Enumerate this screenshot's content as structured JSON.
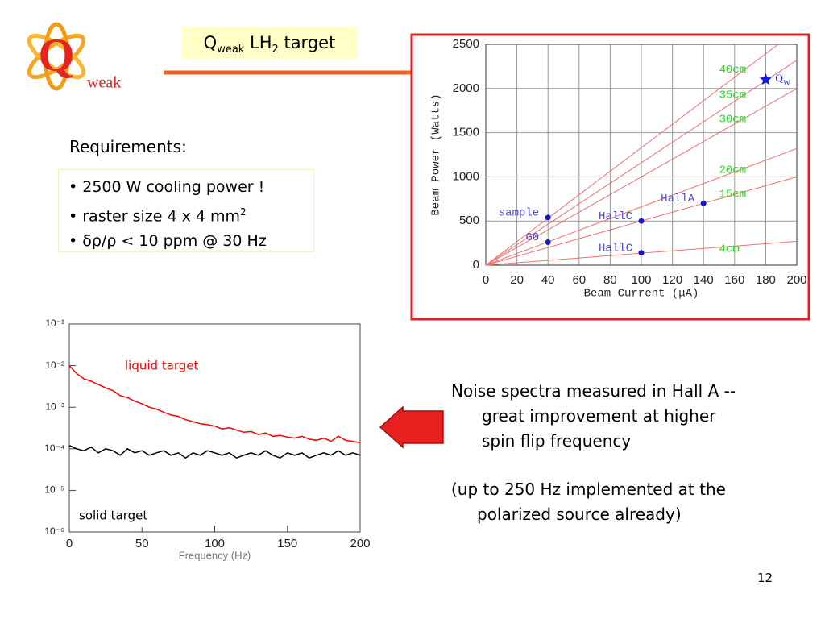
{
  "logo": {
    "letter": "Q",
    "text": "weak"
  },
  "title": {
    "q": "Q",
    "weak": "weak",
    "lh": " LH",
    "two": "2",
    "target": " target"
  },
  "requirements": {
    "heading": "Requirements:",
    "items": [
      "• 2500 W cooling power !",
      "• raster size 4 x 4 mm",
      "•  δρ/ρ < 10 ppm @ 30 Hz"
    ],
    "item_sup": "2"
  },
  "notes": {
    "p1": [
      "Noise spectra measured in Hall A --",
      "great improvement at higher",
      "spin flip frequency"
    ],
    "p2": [
      "(up to 250 Hz implemented at the",
      "polarized source already)"
    ]
  },
  "page_number": "12",
  "chart_data": [
    {
      "type": "line",
      "xlabel": "Beam Current (μA)",
      "ylabel": "Beam Power (Watts)",
      "xlim": [
        0,
        200
      ],
      "ylim": [
        0,
        2500
      ],
      "xticks": [
        0,
        20,
        40,
        60,
        80,
        100,
        120,
        140,
        160,
        180,
        200
      ],
      "yticks": [
        0,
        500,
        1000,
        1500,
        2000,
        2500
      ],
      "grid": true,
      "label_color": "#22dd22",
      "series": [
        {
          "name": "40cm",
          "color": "#f07070",
          "x": [
            0,
            188
          ],
          "values": [
            0,
            2500
          ]
        },
        {
          "name": "35cm",
          "color": "#f07070",
          "x": [
            0,
            200
          ],
          "values": [
            0,
            2320
          ]
        },
        {
          "name": "30cm",
          "color": "#f07070",
          "x": [
            0,
            200
          ],
          "values": [
            0,
            2000
          ]
        },
        {
          "name": "20cm",
          "color": "#f07070",
          "x": [
            0,
            200
          ],
          "values": [
            0,
            1320
          ]
        },
        {
          "name": "15cm",
          "color": "#f07070",
          "x": [
            0,
            200
          ],
          "values": [
            0,
            1000
          ]
        },
        {
          "name": "4cm",
          "color": "#f07070",
          "x": [
            0,
            200
          ],
          "values": [
            0,
            270
          ]
        }
      ],
      "points": {
        "color": "#1515cc",
        "label_color": "#4a4ae0",
        "labels": [
          "sample",
          "G0",
          "HallC",
          "HallA",
          "HallC"
        ],
        "x": [
          40,
          40,
          100,
          140,
          100
        ],
        "values": [
          540,
          260,
          500,
          700,
          140
        ]
      },
      "star": {
        "label": "Q",
        "sub": "W",
        "x": 180,
        "y": 2100,
        "color": "#1515ee"
      }
    },
    {
      "type": "line",
      "log_y": true,
      "xlabel": "Frequency (Hz)",
      "xlim": [
        0,
        200
      ],
      "ylim": [
        1e-06,
        0.1
      ],
      "xticks": [
        0,
        50,
        100,
        150,
        200
      ],
      "yticks": [
        {
          "value": 0.1,
          "label": "10⁻¹"
        },
        {
          "value": 0.01,
          "label": "10⁻²"
        },
        {
          "value": 0.001,
          "label": "10⁻³"
        },
        {
          "value": 0.0001,
          "label": "10⁻⁴"
        },
        {
          "value": 1e-05,
          "label": "10⁻⁵"
        },
        {
          "value": 1e-06,
          "label": "10⁻⁶"
        }
      ],
      "x": [
        0,
        5,
        10,
        15,
        20,
        25,
        30,
        35,
        40,
        45,
        50,
        55,
        60,
        65,
        70,
        75,
        80,
        85,
        90,
        95,
        100,
        105,
        110,
        115,
        120,
        125,
        130,
        135,
        140,
        145,
        150,
        155,
        160,
        165,
        170,
        175,
        180,
        185,
        190,
        195,
        200
      ],
      "series": [
        {
          "name": "liquid target",
          "color": "#ff0000",
          "values": [
            0.01,
            0.0065,
            0.0048,
            0.0042,
            0.0035,
            0.0029,
            0.0025,
            0.0019,
            0.0017,
            0.0014,
            0.0012,
            0.001,
            0.0009,
            0.00075,
            0.00065,
            0.0006,
            0.0005,
            0.00045,
            0.0004,
            0.00038,
            0.00035,
            0.0003,
            0.00032,
            0.00028,
            0.00025,
            0.00026,
            0.00022,
            0.00024,
            0.0002,
            0.00021,
            0.00019,
            0.00018,
            0.0002,
            0.00017,
            0.00016,
            0.00018,
            0.00015,
            0.0002,
            0.00016,
            0.00015,
            0.00014
          ]
        },
        {
          "name": "solid target",
          "color": "#000000",
          "values": [
            0.00012,
            0.0001,
            9e-05,
            0.00011,
            8e-05,
            0.0001,
            9e-05,
            7e-05,
            0.0001,
            8e-05,
            9e-05,
            7e-05,
            8e-05,
            9e-05,
            7e-05,
            8e-05,
            6e-05,
            8e-05,
            7e-05,
            9e-05,
            8e-05,
            7e-05,
            8e-05,
            6e-05,
            7e-05,
            8e-05,
            7e-05,
            9e-05,
            7e-05,
            6e-05,
            8e-05,
            7e-05,
            8e-05,
            6e-05,
            7e-05,
            8e-05,
            7e-05,
            9e-05,
            7e-05,
            8e-05,
            7e-05
          ]
        }
      ]
    }
  ]
}
